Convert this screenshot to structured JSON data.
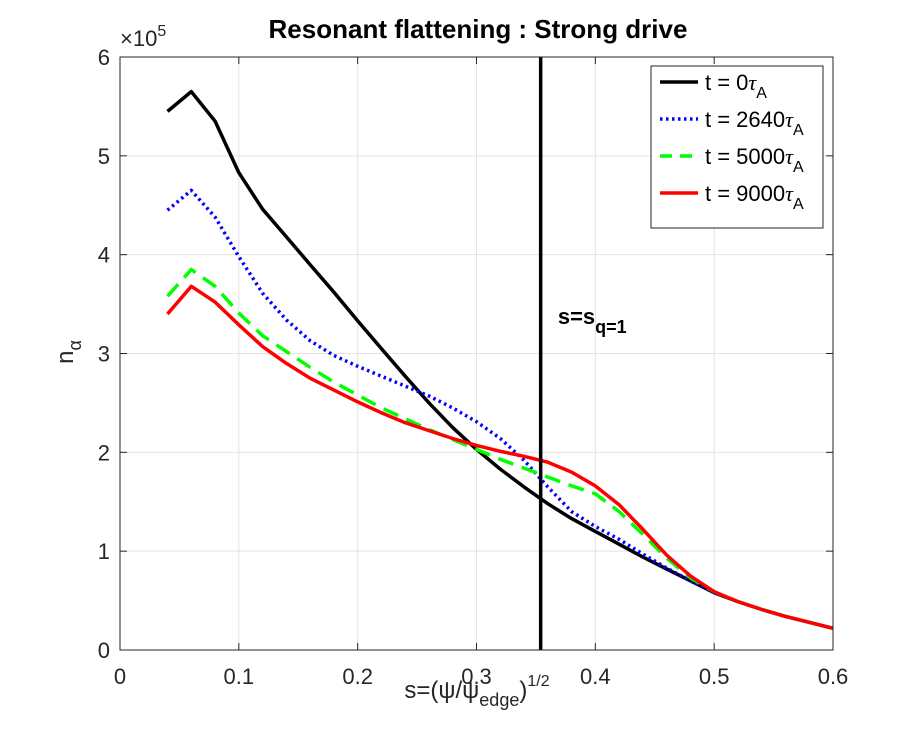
{
  "chart_data": {
    "type": "line",
    "title": "Resonant flattening : Strong drive",
    "xlabel": "s=(ψ/ψedge)1/2",
    "xlabel_parts": {
      "main": "s=(ψ/ψ",
      "sub": "edge",
      "close": ")",
      "sup": "1/2"
    },
    "ylabel": "nα",
    "ylabel_parts": {
      "main": "n",
      "sub": "α"
    },
    "exponent_label": {
      "base": "×10",
      "power": "5"
    },
    "xlim": [
      0,
      0.6
    ],
    "ylim": [
      0,
      6
    ],
    "y_scale": 100000,
    "xticks": [
      0,
      0.1,
      0.2,
      0.3,
      0.4,
      0.5,
      0.6
    ],
    "xtick_labels": [
      "0",
      "0.1",
      "0.2",
      "0.3",
      "0.4",
      "0.5",
      "0.6"
    ],
    "yticks": [
      0,
      1,
      2,
      3,
      4,
      5,
      6
    ],
    "ytick_labels": [
      "0",
      "1",
      "2",
      "3",
      "4",
      "5",
      "6"
    ],
    "grid": true,
    "legend_position": "top-right",
    "vertical_line": {
      "x": 0.354,
      "label_main": "s=s",
      "label_sub": "q=1",
      "label_x": 0.355,
      "label_y": 3.3
    },
    "series": [
      {
        "name": "t = 0τA",
        "label_main": "t = 0",
        "label_tau": "τ",
        "label_sub": "A",
        "color": "#000000",
        "style": "solid",
        "x": [
          0.04,
          0.06,
          0.08,
          0.1,
          0.12,
          0.14,
          0.16,
          0.18,
          0.2,
          0.22,
          0.24,
          0.26,
          0.28,
          0.3,
          0.32,
          0.34,
          0.36,
          0.38,
          0.4,
          0.42,
          0.44,
          0.46,
          0.48,
          0.5,
          0.52,
          0.54,
          0.56,
          0.58,
          0.6
        ],
        "values": [
          5.45,
          5.65,
          5.35,
          4.83,
          4.46,
          4.18,
          3.9,
          3.62,
          3.33,
          3.05,
          2.77,
          2.5,
          2.25,
          2.03,
          1.83,
          1.65,
          1.48,
          1.33,
          1.2,
          1.07,
          0.94,
          0.82,
          0.7,
          0.58,
          0.49,
          0.41,
          0.34,
          0.28,
          0.22
        ]
      },
      {
        "name": "t = 2640τA",
        "label_main": "t = 2640",
        "label_tau": "τ",
        "label_sub": "A",
        "color": "#0000ff",
        "style": "dotted",
        "x": [
          0.04,
          0.06,
          0.08,
          0.1,
          0.12,
          0.14,
          0.16,
          0.18,
          0.2,
          0.22,
          0.24,
          0.26,
          0.28,
          0.3,
          0.32,
          0.34,
          0.36,
          0.38,
          0.4,
          0.42,
          0.44,
          0.46,
          0.48,
          0.5,
          0.52,
          0.54,
          0.56,
          0.58,
          0.6
        ],
        "values": [
          4.45,
          4.65,
          4.38,
          3.98,
          3.61,
          3.34,
          3.13,
          2.98,
          2.87,
          2.77,
          2.67,
          2.57,
          2.45,
          2.31,
          2.14,
          1.92,
          1.65,
          1.4,
          1.25,
          1.12,
          0.97,
          0.83,
          0.7,
          0.58,
          0.49,
          0.41,
          0.34,
          0.28,
          0.22
        ]
      },
      {
        "name": "t = 5000τA",
        "label_main": "t = 5000",
        "label_tau": "τ",
        "label_sub": "A",
        "color": "#00ff00",
        "style": "dashed",
        "x": [
          0.04,
          0.06,
          0.08,
          0.1,
          0.12,
          0.14,
          0.16,
          0.18,
          0.2,
          0.22,
          0.24,
          0.26,
          0.28,
          0.3,
          0.32,
          0.34,
          0.36,
          0.38,
          0.4,
          0.42,
          0.44,
          0.46,
          0.48,
          0.5,
          0.52,
          0.54,
          0.56,
          0.58,
          0.6
        ],
        "values": [
          3.58,
          3.85,
          3.68,
          3.41,
          3.18,
          3.02,
          2.86,
          2.71,
          2.58,
          2.45,
          2.34,
          2.23,
          2.13,
          2.03,
          1.93,
          1.84,
          1.75,
          1.66,
          1.58,
          1.4,
          1.17,
          0.93,
          0.73,
          0.59,
          0.49,
          0.41,
          0.34,
          0.28,
          0.22
        ]
      },
      {
        "name": "t = 9000τA",
        "label_main": "t = 9000",
        "label_tau": "τ",
        "label_sub": "A",
        "color": "#ff0000",
        "style": "solid",
        "x": [
          0.04,
          0.06,
          0.08,
          0.1,
          0.12,
          0.14,
          0.16,
          0.18,
          0.2,
          0.22,
          0.24,
          0.26,
          0.28,
          0.3,
          0.32,
          0.34,
          0.36,
          0.38,
          0.4,
          0.42,
          0.44,
          0.46,
          0.48,
          0.5,
          0.52,
          0.54,
          0.56,
          0.58,
          0.6
        ],
        "values": [
          3.4,
          3.68,
          3.52,
          3.29,
          3.07,
          2.9,
          2.75,
          2.63,
          2.51,
          2.4,
          2.3,
          2.22,
          2.14,
          2.07,
          2.01,
          1.96,
          1.9,
          1.8,
          1.66,
          1.47,
          1.22,
          0.96,
          0.75,
          0.59,
          0.49,
          0.41,
          0.34,
          0.28,
          0.22
        ]
      }
    ]
  }
}
